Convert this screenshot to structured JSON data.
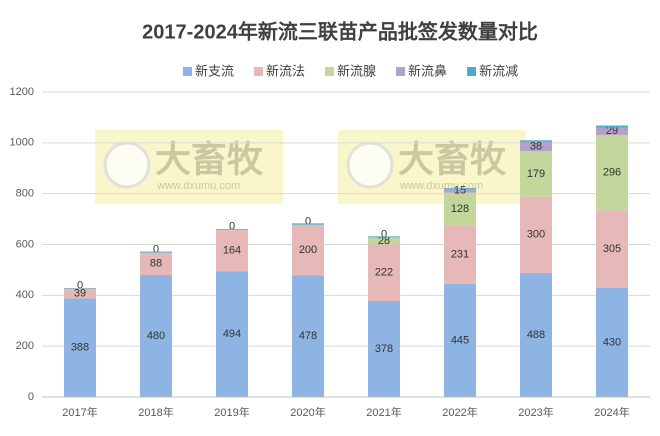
{
  "chart_data": {
    "type": "stacked-bar",
    "title": "2017-2024年新流三联苗产品批签发数量对比",
    "annotations": [
      "大畜牧",
      "www.dxumu.com"
    ],
    "categories": [
      "2017年",
      "2018年",
      "2019年",
      "2020年",
      "2021年",
      "2022年",
      "2023年",
      "2024年"
    ],
    "series": [
      {
        "name": "新支流",
        "color": "#8eb4e3",
        "values": [
          388,
          480,
          494,
          478,
          378,
          445,
          488,
          430
        ],
        "labels": true
      },
      {
        "name": "新流法",
        "color": "#e6b9b8",
        "values": [
          39,
          88,
          164,
          200,
          222,
          231,
          300,
          305
        ],
        "labels": true
      },
      {
        "name": "新流腺",
        "color": "#c3d69b",
        "values": [
          null,
          null,
          null,
          null,
          28,
          128,
          179,
          296
        ],
        "labels": true
      },
      {
        "name": "新流鼻",
        "color": "#b3a2c7",
        "values": [
          0,
          0,
          0,
          0,
          0,
          15,
          38,
          29
        ],
        "labels": true
      },
      {
        "name": "新流减",
        "color": "#4bacc6",
        "values": [
          2,
          4,
          3,
          5,
          4,
          3,
          5,
          8
        ],
        "labels": false
      }
    ],
    "ylim": [
      0,
      1200
    ],
    "yticks": [
      0,
      200,
      400,
      600,
      800,
      1000,
      1200
    ],
    "grid": true
  }
}
